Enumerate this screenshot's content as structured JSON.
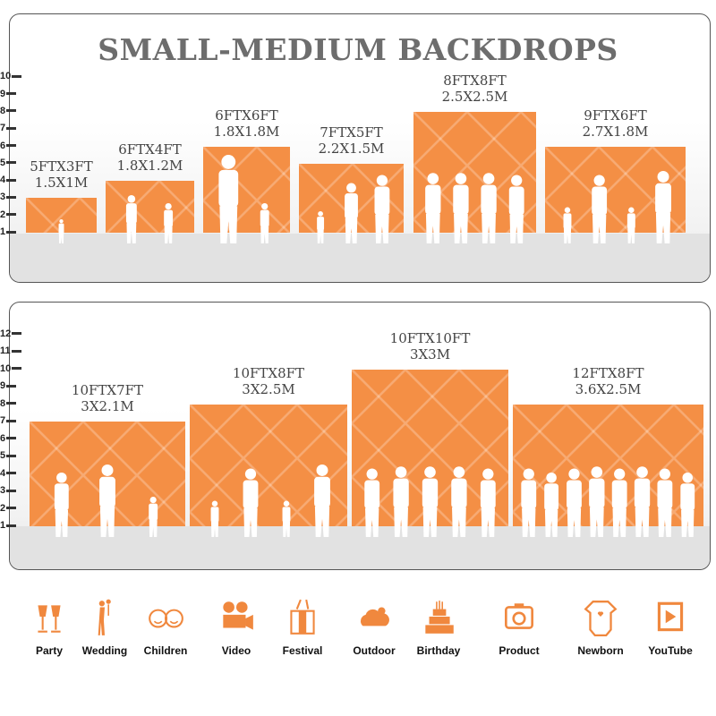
{
  "title": "SMALL-MEDIUM BACKDROPS",
  "panels": [
    {
      "axis_ticks": [
        "1",
        "2",
        "3",
        "4",
        "5",
        "6",
        "7",
        "8",
        "9",
        "10"
      ],
      "bars": [
        {
          "ft": "5FTX3FT",
          "m": "1.5X1M",
          "width_ft": 5,
          "height_ft": 3
        },
        {
          "ft": "6FTX4FT",
          "m": "1.8X1.2M",
          "width_ft": 6,
          "height_ft": 4
        },
        {
          "ft": "6FTX6FT",
          "m": "1.8X1.8M",
          "width_ft": 6,
          "height_ft": 6
        },
        {
          "ft": "7FTX5FT",
          "m": "2.2X1.5M",
          "width_ft": 7,
          "height_ft": 5
        },
        {
          "ft": "8FTX8FT",
          "m": "2.5X2.5M",
          "width_ft": 8,
          "height_ft": 8
        },
        {
          "ft": "9FTX6FT",
          "m": "2.7X1.8M",
          "width_ft": 9,
          "height_ft": 6
        }
      ]
    },
    {
      "axis_ticks": [
        "1",
        "2",
        "3",
        "4",
        "5",
        "6",
        "7",
        "8",
        "9",
        "10",
        "11",
        "12"
      ],
      "bars": [
        {
          "ft": "10FTX7FT",
          "m": "3X2.1M",
          "width_ft": 10,
          "height_ft": 7
        },
        {
          "ft": "10FTX8FT",
          "m": "3X2.5M",
          "width_ft": 10,
          "height_ft": 8
        },
        {
          "ft": "10FTX10FT",
          "m": "3X3M",
          "width_ft": 10,
          "height_ft": 10
        },
        {
          "ft": "12FTX8FT",
          "m": "3.6X2.5M",
          "width_ft": 12,
          "height_ft": 8
        }
      ]
    }
  ],
  "uses": [
    {
      "label": "Party",
      "icon": "party-glasses-icon"
    },
    {
      "label": "Wedding",
      "icon": "wedding-couple-icon"
    },
    {
      "label": "Children",
      "icon": "children-faces-icon"
    },
    {
      "label": "Video",
      "icon": "video-camera-icon"
    },
    {
      "label": "Festival",
      "icon": "gift-box-icon"
    },
    {
      "label": "Outdoor",
      "icon": "cloud-icon"
    },
    {
      "label": "Birthday",
      "icon": "birthday-cake-icon"
    },
    {
      "label": "Product",
      "icon": "camera-icon"
    },
    {
      "label": "Newborn",
      "icon": "baby-onesie-icon"
    },
    {
      "label": "YouTube",
      "icon": "youtube-play-icon"
    }
  ],
  "colors": {
    "backdrop": "#f48f45",
    "icon": "#f0883e",
    "title": "#6d6d6d"
  }
}
